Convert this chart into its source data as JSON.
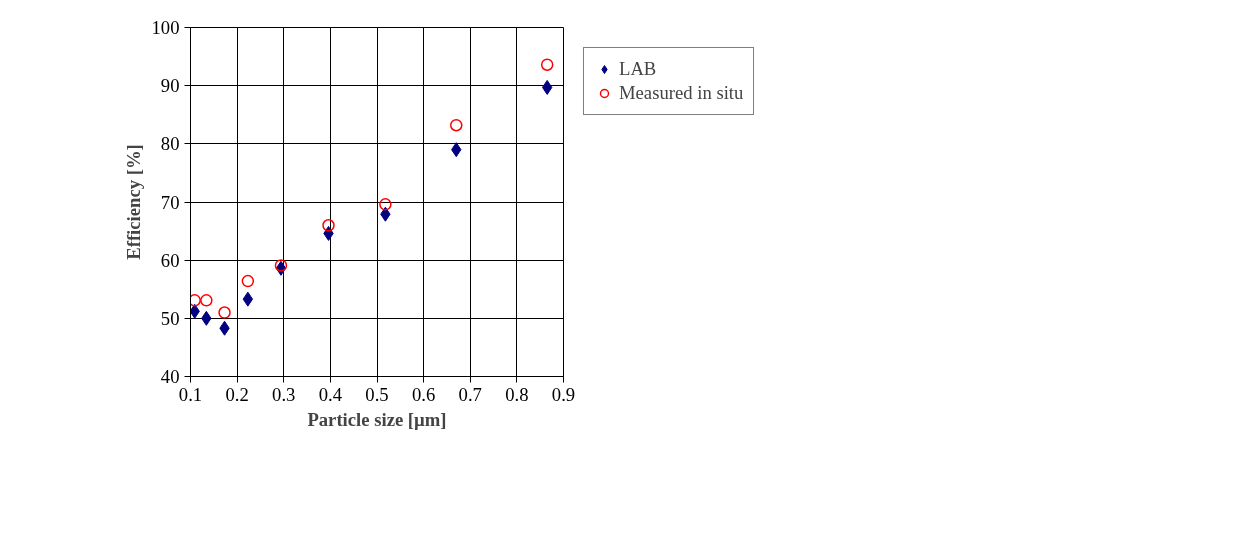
{
  "chart_data": {
    "type": "scatter",
    "xlabel": "Particle size [µm]",
    "ylabel": "Efficiency [%]",
    "x": [
      0.109,
      0.134,
      0.173,
      0.223,
      0.294,
      0.396,
      0.518,
      0.67,
      0.865
    ],
    "series": [
      {
        "name": "LAB",
        "color": "#000080",
        "marker": "diamond",
        "values": [
          51.2,
          50.0,
          48.3,
          53.3,
          58.6,
          64.6,
          67.9,
          79.0,
          89.7
        ]
      },
      {
        "name": "Measured in situ",
        "color": "#ff0000",
        "marker": "circle",
        "values": [
          53.1,
          53.1,
          51.0,
          56.4,
          59.1,
          66.0,
          69.6,
          83.2,
          93.6
        ]
      }
    ],
    "xlim": [
      0.1,
      0.9
    ],
    "xticks": [
      0.1,
      0.2,
      0.3,
      0.4,
      0.5,
      0.6,
      0.7,
      0.8,
      0.9
    ],
    "ylim": [
      40,
      100
    ],
    "yticks": [
      40,
      50,
      60,
      70,
      80,
      90,
      100
    ],
    "grid": true,
    "legend": "right"
  }
}
